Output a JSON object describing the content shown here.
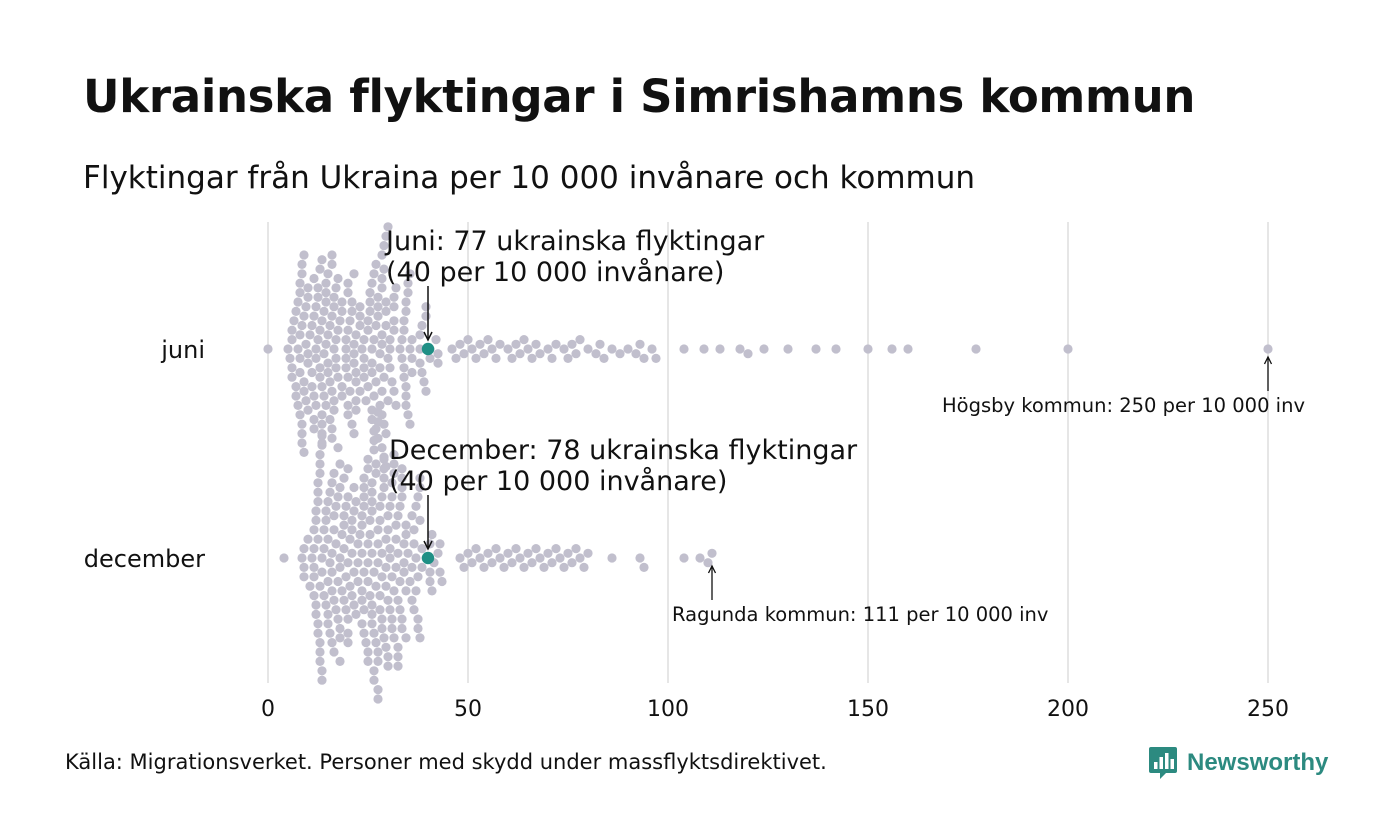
{
  "title": "Ukrainska flyktingar i Simrishamns kommun",
  "subtitle": "Flyktingar från Ukraina per 10 000 invånare och kommun",
  "source": "Källa: Migrationsverket. Personer med skydd under massflyktsdirektivet.",
  "brand": {
    "name": "Newsworthy",
    "icon": "newsworthy-logo-icon",
    "color": "#2c8a80"
  },
  "colors": {
    "dot": "#c1bfcd",
    "highlight": "#1f8f85",
    "grid": "#d9d9d9",
    "text": "#111111"
  },
  "chart_data": {
    "type": "scatter",
    "subtype": "beeswarm",
    "x_axis": {
      "ticks": [
        0,
        50,
        100,
        150,
        200,
        250
      ],
      "range": [
        0,
        250
      ]
    },
    "grid": "vertical",
    "categories": [
      "juni",
      "december"
    ],
    "series": [
      {
        "category": "juni",
        "distribution": {
          "count": 290,
          "min": 0,
          "max": 250,
          "core_start": 5,
          "core_end": 45
        },
        "sparse_values": [
          46,
          47,
          48,
          49,
          50,
          51,
          52,
          53,
          54,
          55,
          56,
          57,
          58,
          60,
          61,
          62,
          63,
          64,
          65,
          66,
          67,
          68,
          70,
          71,
          72,
          74,
          75,
          76,
          77,
          78,
          80,
          82,
          83,
          84,
          86,
          88,
          90,
          92,
          93,
          94,
          96,
          97,
          104,
          109,
          113,
          118,
          120,
          124,
          130,
          137,
          142,
          150,
          156,
          160,
          177,
          200,
          250
        ],
        "highlight": {
          "value": 40,
          "label_line1": "Juni: 77 ukrainska flyktingar",
          "label_line2": "(40 per 10 000 invånare)"
        },
        "extreme": {
          "value": 250,
          "label": "Högsby kommun: 250 per 10 000 inv"
        }
      },
      {
        "category": "december",
        "distribution": {
          "count": 290,
          "min": 4,
          "max": 111,
          "core_start": 8,
          "core_end": 47
        },
        "sparse_values": [
          48,
          49,
          50,
          51,
          52,
          53,
          54,
          55,
          56,
          57,
          58,
          59,
          60,
          61,
          62,
          63,
          64,
          65,
          66,
          67,
          68,
          69,
          70,
          71,
          72,
          73,
          74,
          75,
          76,
          77,
          78,
          79,
          80,
          86,
          93,
          94,
          104,
          108,
          110,
          111
        ],
        "highlight": {
          "value": 40,
          "label_line1": "December: 78 ukrainska flyktingar",
          "label_line2": "(40 per 10 000 invånare)"
        },
        "extreme": {
          "value": 111,
          "label": "Ragunda kommun: 111 per 10 000 inv"
        }
      }
    ]
  }
}
